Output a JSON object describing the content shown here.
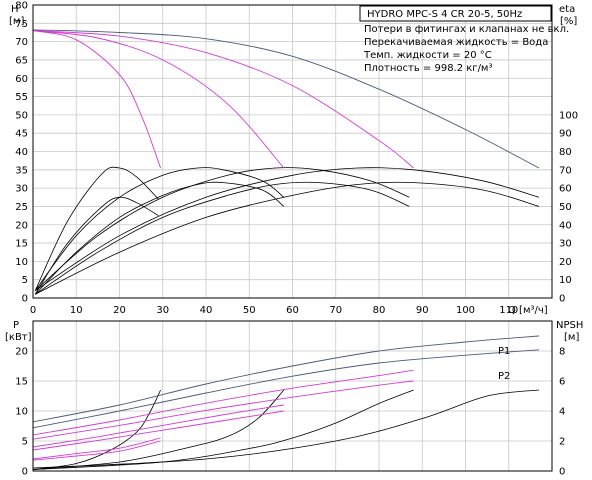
{
  "chart_data": [
    {
      "type": "line",
      "title": "HYDRO MPC-S 4 CR 20-5, 50Hz",
      "xlabel": "Q [м³/ч]",
      "ylabel_left": "H [м]",
      "ylabel_right": "eta [%]",
      "left_axis": {
        "label_top": "H",
        "label_unit": "[м]",
        "min": 0,
        "max": 80,
        "ticks": [
          0,
          5,
          10,
          15,
          20,
          25,
          30,
          35,
          40,
          45,
          50,
          55,
          60,
          65,
          70,
          75,
          80
        ]
      },
      "right_axis": {
        "label_top": "eta",
        "label_unit": "[%]",
        "min": 0,
        "max": 100,
        "ticks": [
          0,
          10,
          20,
          30,
          40,
          50,
          60,
          70,
          80,
          90,
          100
        ]
      },
      "x_axis": {
        "label": "Q [м³/ч]",
        "min": 0,
        "max": 120,
        "ticks": [
          0,
          10,
          20,
          30,
          40,
          50,
          60,
          70,
          80,
          90,
          100,
          110
        ]
      },
      "info_lines": [
        "Потери в фитингах и клапанах не вкл.",
        "Перекачиваемая жидкость = Вода",
        "Темп. жидкости = 20 °C",
        "Плотность = 998.2 кг/м³"
      ],
      "grid": true,
      "head_series": [
        {
          "color": "#4a5a7a",
          "x": [
            0,
            20,
            40,
            60,
            80,
            100,
            117
          ],
          "y": [
            73.2,
            72.5,
            70.8,
            66,
            57,
            46,
            35.5
          ]
        },
        {
          "color": "#d23cd2",
          "x": [
            0,
            20,
            40,
            60,
            80,
            88
          ],
          "y": [
            73,
            71.5,
            67,
            58,
            43,
            35.5
          ]
        },
        {
          "color": "#d23cd2",
          "x": [
            0,
            15,
            30,
            45,
            58
          ],
          "y": [
            73,
            71,
            65,
            53,
            35.5
          ]
        },
        {
          "color": "#d23cd2",
          "x": [
            0,
            10,
            20,
            25,
            29.5
          ],
          "y": [
            73,
            70.5,
            61,
            50,
            35.5
          ]
        }
      ],
      "efficiency_series": [
        {
          "color": "#000000",
          "x": [
            0.5,
            8,
            16,
            20,
            24,
            29
          ],
          "y": [
            4,
            42,
            68,
            71,
            66,
            54
          ]
        },
        {
          "color": "#000000",
          "x": [
            0.5,
            10,
            20,
            30,
            38,
            44,
            53,
            58
          ],
          "y": [
            4,
            34,
            55,
            67,
            71,
            70,
            64,
            55
          ]
        },
        {
          "color": "#000000",
          "x": [
            0.5,
            15,
            30,
            45,
            56,
            66,
            78,
            87
          ],
          "y": [
            4,
            34,
            55,
            67,
            71,
            70,
            64,
            55
          ]
        },
        {
          "color": "#000000",
          "x": [
            0.5,
            20,
            40,
            60,
            75,
            88,
            104,
            117
          ],
          "y": [
            4,
            34,
            55,
            67,
            71,
            70,
            64,
            55
          ]
        },
        {
          "color": "#000000",
          "x": [
            0.5,
            20,
            40,
            60,
            75,
            88,
            104,
            117
          ],
          "y": [
            2,
            25,
            44,
            56,
            62,
            63,
            59,
            50
          ]
        },
        {
          "color": "#000000",
          "x": [
            0.5,
            15,
            30,
            45,
            56,
            66,
            78,
            87
          ],
          "y": [
            2,
            25,
            44,
            56,
            62,
            63,
            59,
            50
          ]
        },
        {
          "color": "#000000",
          "x": [
            0.5,
            10,
            20,
            30,
            38,
            44,
            53,
            58
          ],
          "y": [
            2,
            25,
            44,
            56,
            62,
            63,
            59,
            50
          ]
        },
        {
          "color": "#000000",
          "x": [
            0.5,
            8,
            16,
            20,
            24,
            29
          ],
          "y": [
            2,
            30,
            50,
            55,
            52,
            45
          ]
        }
      ]
    },
    {
      "type": "line",
      "xlabel": "",
      "ylabel_left": "P [кВт]",
      "ylabel_right": "NPSH [м]",
      "left_axis": {
        "label_top": "P",
        "label_unit": "[кВт]",
        "min": 0,
        "max": 25,
        "ticks": [
          0,
          5,
          10,
          15,
          20
        ]
      },
      "right_axis": {
        "label_top": "NPSH",
        "label_unit": "[м]",
        "min": 0,
        "max": 10,
        "ticks": [
          0,
          2,
          4,
          6,
          8
        ]
      },
      "x_axis": {
        "min": 0,
        "max": 120
      },
      "grid": true,
      "power_series": [
        {
          "name": "P1",
          "color": "#4a5a7a",
          "x": [
            0,
            20,
            40,
            60,
            80,
            100,
            117
          ],
          "y": [
            8.2,
            11,
            14.5,
            17.5,
            20,
            21.5,
            22.5
          ]
        },
        {
          "name": "P2",
          "color": "#4a5a7a",
          "x": [
            0,
            20,
            40,
            60,
            80,
            100,
            117
          ],
          "y": [
            7.2,
            10,
            13,
            15.8,
            18,
            19.3,
            20.2
          ]
        },
        {
          "color": "#d23cd2",
          "x": [
            0,
            20,
            40,
            60,
            80,
            88
          ],
          "y": [
            6,
            8.5,
            11.3,
            13.8,
            15.9,
            16.8
          ]
        },
        {
          "color": "#d23cd2",
          "x": [
            0,
            20,
            40,
            60,
            80,
            88
          ],
          "y": [
            5.3,
            7.6,
            10.1,
            12.3,
            14.3,
            15
          ]
        },
        {
          "color": "#d23cd2",
          "x": [
            0,
            15,
            30,
            45,
            58
          ],
          "y": [
            4,
            5.7,
            7.6,
            9.5,
            11
          ]
        },
        {
          "color": "#d23cd2",
          "x": [
            0,
            15,
            30,
            45,
            58
          ],
          "y": [
            3.5,
            5.1,
            6.8,
            8.5,
            10
          ]
        },
        {
          "color": "#d23cd2",
          "x": [
            0,
            10,
            20,
            29.5
          ],
          "y": [
            2,
            2.9,
            3.8,
            5.5
          ]
        },
        {
          "color": "#d23cd2",
          "x": [
            0,
            10,
            20,
            29.5
          ],
          "y": [
            1.8,
            2.5,
            3.3,
            5
          ]
        }
      ],
      "npsh_series": [
        {
          "color": "#000000",
          "x": [
            0,
            40,
            70,
            90,
            105,
            117
          ],
          "y": [
            0.2,
            0.8,
            2,
            3.5,
            5,
            5.4
          ]
        },
        {
          "color": "#000000",
          "x": [
            0,
            30,
            50,
            60,
            70,
            80,
            88
          ],
          "y": [
            0.1,
            0.6,
            1.5,
            2.2,
            3.2,
            4.5,
            5.4
          ]
        },
        {
          "color": "#000000",
          "x": [
            0,
            20,
            35,
            45,
            52,
            58
          ],
          "y": [
            0.1,
            0.6,
            1.5,
            2.3,
            3.5,
            5.4
          ]
        },
        {
          "color": "#000000",
          "x": [
            0,
            10,
            18,
            24,
            27,
            29.5
          ],
          "y": [
            0.1,
            0.5,
            1.4,
            2.6,
            3.9,
            5.4
          ]
        }
      ]
    }
  ]
}
